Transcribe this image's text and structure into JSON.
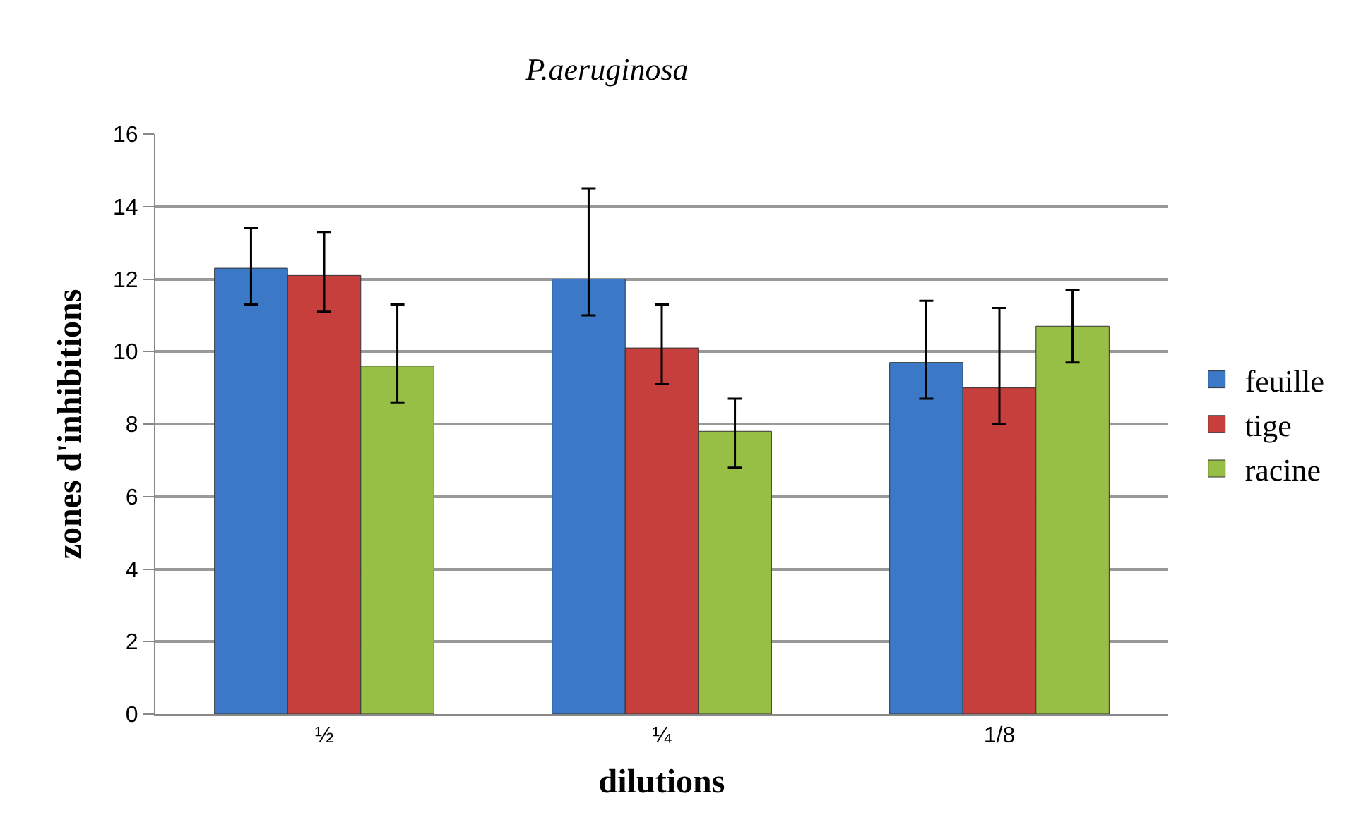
{
  "chart_data": {
    "type": "bar",
    "title": "P.aeruginosa",
    "xlabel": "dilutions",
    "ylabel": "zones d'inhibitions",
    "categories": [
      "½",
      "¼",
      "1/8"
    ],
    "series": [
      {
        "name": "feuille",
        "color": "#3b78c6",
        "values": [
          12.3,
          12.0,
          9.7
        ],
        "errors": [
          [
            11.3,
            13.4
          ],
          [
            11.0,
            14.5
          ],
          [
            8.7,
            11.4
          ]
        ]
      },
      {
        "name": "tige",
        "color": "#c63f3c",
        "values": [
          12.1,
          10.1,
          9.0
        ],
        "errors": [
          [
            11.1,
            13.3
          ],
          [
            9.1,
            11.3
          ],
          [
            8.0,
            11.2
          ]
        ]
      },
      {
        "name": "racine",
        "color": "#98bf45",
        "values": [
          9.6,
          7.8,
          10.7
        ],
        "errors": [
          [
            8.6,
            11.3
          ],
          [
            6.8,
            8.7
          ],
          [
            9.7,
            11.7
          ]
        ]
      }
    ],
    "ylim": [
      0,
      16
    ],
    "yticks": [
      0,
      2,
      4,
      6,
      8,
      10,
      12,
      14,
      16
    ],
    "grid": "y",
    "legend": "right"
  }
}
